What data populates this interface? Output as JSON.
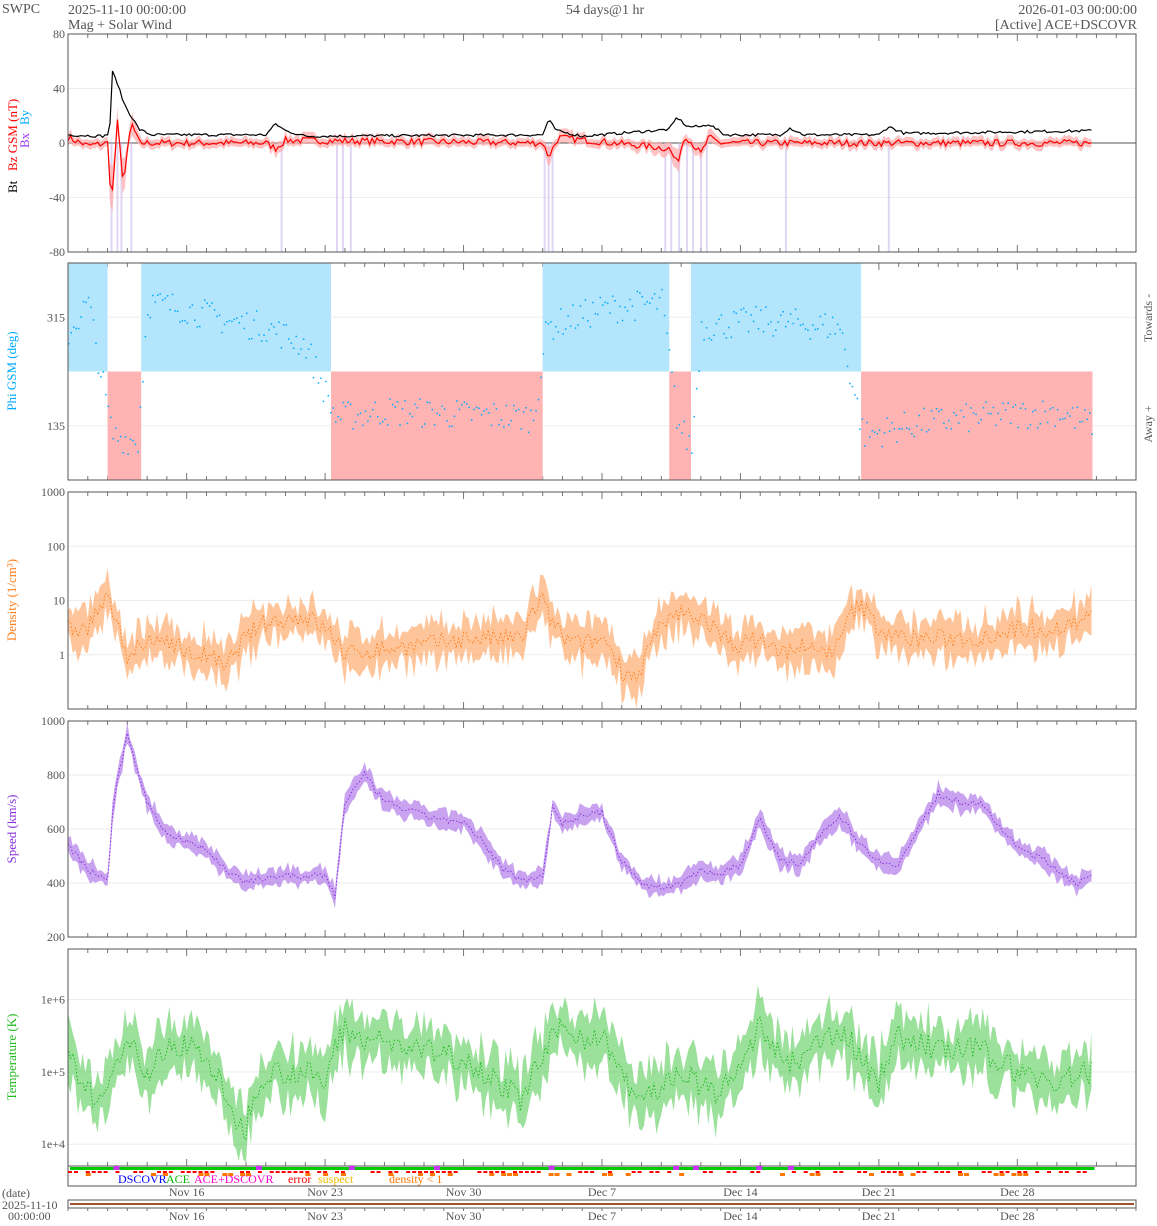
{
  "header": {
    "brand": "SWPC",
    "start": "2025-11-10 00:00:00",
    "title": "Mag + Solar Wind",
    "span": "54 days@1 hr",
    "end": "2026-01-03 00:00:00",
    "source": "[Active] ACE+DSCOVR"
  },
  "colors": {
    "bt": "#000000",
    "bz": "#ff0000",
    "bx": "#9933ff",
    "by": "#00aaff",
    "towards": "#b3e5fc",
    "away": "#ffb3b3",
    "density": "#ff7f1e",
    "speed": "#8833dd",
    "temp": "#22bb22"
  },
  "legend": {
    "dscovr": "DSCOVR",
    "ace": "ACE",
    "both": "ACE+DSCOVR",
    "error": "error",
    "suspect": "suspect",
    "density_lt1": "density < 1"
  },
  "bottom": {
    "date_label": "(date)",
    "start_date": "2025-11-10",
    "start_time": "00:00:00"
  },
  "side_labels": {
    "towards": "Towards -",
    "away": "Away +"
  },
  "chart_data": [
    {
      "type": "line",
      "name": "mag",
      "ylabel_parts": [
        "Bt",
        "Bz GSM (nT)",
        "Bx",
        "By"
      ],
      "ylim": [
        -80,
        80
      ],
      "yticks": [
        "80",
        "40",
        "0",
        "-40",
        "-80"
      ],
      "ytick_values": [
        80,
        40,
        0,
        -40,
        -80
      ],
      "bt": [
        [
          0,
          6
        ],
        [
          1.8,
          5
        ],
        [
          2.1,
          7
        ],
        [
          2.25,
          52
        ],
        [
          2.5,
          44
        ],
        [
          2.8,
          30
        ],
        [
          3.1,
          22
        ],
        [
          3.6,
          10
        ],
        [
          4.2,
          6
        ],
        [
          10,
          6
        ],
        [
          10.5,
          14
        ],
        [
          11,
          9
        ],
        [
          12,
          5
        ],
        [
          24,
          6
        ],
        [
          24.3,
          17
        ],
        [
          24.7,
          9
        ],
        [
          26,
          5
        ],
        [
          30.4,
          10
        ],
        [
          30.8,
          19
        ],
        [
          31.3,
          12
        ],
        [
          32,
          12
        ],
        [
          32.4,
          14
        ],
        [
          33.2,
          6
        ],
        [
          36,
          6
        ],
        [
          36.5,
          11
        ],
        [
          37.2,
          6
        ],
        [
          41,
          6
        ],
        [
          41.5,
          12
        ],
        [
          42.3,
          7
        ],
        [
          51.8,
          9
        ]
      ],
      "bz": [
        [
          0,
          4
        ],
        [
          1,
          -2
        ],
        [
          2,
          0
        ],
        [
          2.2,
          -45
        ],
        [
          2.5,
          15
        ],
        [
          2.8,
          -30
        ],
        [
          3.2,
          15
        ],
        [
          3.6,
          0
        ],
        [
          10,
          0
        ],
        [
          10.5,
          -4
        ],
        [
          11,
          2
        ],
        [
          24,
          0
        ],
        [
          24.3,
          -10
        ],
        [
          24.8,
          4
        ],
        [
          30.4,
          -4
        ],
        [
          30.8,
          -15
        ],
        [
          31.2,
          6
        ],
        [
          32,
          -8
        ],
        [
          32.4,
          4
        ],
        [
          33,
          0
        ],
        [
          51.8,
          0
        ]
      ]
    },
    {
      "type": "scatter",
      "name": "phi",
      "ylabel": "Phi GSM (deg)",
      "ylim": [
        45,
        405
      ],
      "yticks": [
        "315",
        "135"
      ],
      "ytick_values": [
        315,
        135
      ],
      "boundary": 225,
      "sectors": [
        [
          0,
          2,
          "towards"
        ],
        [
          2,
          3.7,
          "away"
        ],
        [
          3.7,
          13.3,
          "towards"
        ],
        [
          13.3,
          24,
          "away"
        ],
        [
          24,
          30.4,
          "towards"
        ],
        [
          30.4,
          31.5,
          "away"
        ],
        [
          31.5,
          40.1,
          "towards"
        ],
        [
          40.1,
          51.8,
          "away"
        ]
      ],
      "means": [
        [
          0,
          290
        ],
        [
          1,
          340
        ],
        [
          2.2,
          120
        ],
        [
          3.5,
          110
        ],
        [
          4,
          340
        ],
        [
          6,
          330
        ],
        [
          8,
          310
        ],
        [
          10,
          300
        ],
        [
          12,
          270
        ],
        [
          13.5,
          150
        ],
        [
          16,
          160
        ],
        [
          20,
          155
        ],
        [
          23.5,
          150
        ],
        [
          24.2,
          300
        ],
        [
          27,
          330
        ],
        [
          30,
          340
        ],
        [
          30.8,
          140
        ],
        [
          31.5,
          100
        ],
        [
          32,
          300
        ],
        [
          35,
          310
        ],
        [
          39,
          300
        ],
        [
          40.2,
          120
        ],
        [
          43,
          140
        ],
        [
          46,
          150
        ],
        [
          50,
          160
        ],
        [
          51.5,
          140
        ]
      ]
    },
    {
      "type": "area",
      "name": "density",
      "ylabel": "Density (1/cm³)",
      "scale": "log",
      "ylim": [
        0.1,
        1000
      ],
      "yticks": [
        "1000",
        "100",
        "10",
        "1"
      ],
      "ytick_values": [
        1000,
        100,
        10,
        1
      ],
      "values": [
        [
          0,
          3
        ],
        [
          1,
          3
        ],
        [
          2,
          10
        ],
        [
          2.5,
          3
        ],
        [
          3,
          1
        ],
        [
          4,
          1.5
        ],
        [
          5,
          2
        ],
        [
          6,
          1
        ],
        [
          7,
          1
        ],
        [
          8,
          0.5
        ],
        [
          9,
          2
        ],
        [
          10,
          4
        ],
        [
          12,
          5
        ],
        [
          13.5,
          2
        ],
        [
          14,
          1
        ],
        [
          16,
          1.3
        ],
        [
          18,
          1.5
        ],
        [
          20,
          2
        ],
        [
          22,
          2
        ],
        [
          23,
          2
        ],
        [
          24,
          10
        ],
        [
          24.3,
          5
        ],
        [
          25,
          2
        ],
        [
          26,
          1.5
        ],
        [
          27,
          2
        ],
        [
          28,
          0.5
        ],
        [
          29,
          0.4
        ],
        [
          30,
          3
        ],
        [
          31,
          6
        ],
        [
          32,
          5
        ],
        [
          33,
          2
        ],
        [
          34,
          1.5
        ],
        [
          35,
          2
        ],
        [
          36,
          1
        ],
        [
          37,
          1.5
        ],
        [
          38,
          1
        ],
        [
          39,
          1.5
        ],
        [
          40,
          8
        ],
        [
          41,
          3
        ],
        [
          42,
          2
        ],
        [
          44,
          2
        ],
        [
          46,
          2
        ],
        [
          48,
          3
        ],
        [
          50,
          3
        ],
        [
          51.8,
          5
        ]
      ]
    },
    {
      "type": "area",
      "name": "speed",
      "ylabel": "Speed (km/s)",
      "ylim": [
        200,
        1000
      ],
      "yticks": [
        "1000",
        "800",
        "600",
        "400",
        "200"
      ],
      "ytick_values": [
        1000,
        800,
        600,
        400,
        200
      ],
      "values": [
        [
          0,
          540
        ],
        [
          1,
          450
        ],
        [
          2,
          410
        ],
        [
          2.3,
          700
        ],
        [
          3,
          950
        ],
        [
          4,
          700
        ],
        [
          5,
          580
        ],
        [
          6,
          560
        ],
        [
          7,
          520
        ],
        [
          8,
          450
        ],
        [
          9,
          400
        ],
        [
          10,
          420
        ],
        [
          11,
          430
        ],
        [
          12,
          420
        ],
        [
          13,
          430
        ],
        [
          13.5,
          350
        ],
        [
          14,
          700
        ],
        [
          15,
          800
        ],
        [
          16,
          700
        ],
        [
          18,
          650
        ],
        [
          20,
          620
        ],
        [
          21,
          550
        ],
        [
          22,
          450
        ],
        [
          23,
          410
        ],
        [
          24,
          430
        ],
        [
          24.5,
          680
        ],
        [
          25,
          620
        ],
        [
          26,
          650
        ],
        [
          27,
          660
        ],
        [
          28,
          480
        ],
        [
          29,
          400
        ],
        [
          30,
          380
        ],
        [
          31,
          400
        ],
        [
          32,
          450
        ],
        [
          33,
          430
        ],
        [
          34,
          470
        ],
        [
          35,
          640
        ],
        [
          36,
          480
        ],
        [
          37,
          470
        ],
        [
          38,
          580
        ],
        [
          39,
          650
        ],
        [
          40,
          550
        ],
        [
          41,
          480
        ],
        [
          42,
          470
        ],
        [
          43,
          600
        ],
        [
          44,
          730
        ],
        [
          45,
          700
        ],
        [
          46,
          700
        ],
        [
          47,
          620
        ],
        [
          48,
          530
        ],
        [
          49,
          500
        ],
        [
          50,
          450
        ],
        [
          51,
          400
        ],
        [
          51.8,
          420
        ]
      ]
    },
    {
      "type": "area",
      "name": "temperature",
      "ylabel": "Temperature (K)",
      "scale": "log",
      "ylim": [
        5000,
        5000000
      ],
      "yticks": [
        "1e+6",
        "1e+5",
        "1e+4"
      ],
      "ytick_values": [
        1000000,
        100000,
        10000
      ],
      "values": [
        [
          0,
          150000
        ],
        [
          1,
          50000
        ],
        [
          2,
          40000
        ],
        [
          3,
          300000
        ],
        [
          4,
          80000
        ],
        [
          5,
          200000
        ],
        [
          6,
          250000
        ],
        [
          7,
          150000
        ],
        [
          8,
          30000
        ],
        [
          9,
          15000
        ],
        [
          10,
          100000
        ],
        [
          11,
          100000
        ],
        [
          12,
          100000
        ],
        [
          13,
          60000
        ],
        [
          14,
          400000
        ],
        [
          15,
          300000
        ],
        [
          16,
          250000
        ],
        [
          18,
          200000
        ],
        [
          20,
          150000
        ],
        [
          22,
          60000
        ],
        [
          23,
          40000
        ],
        [
          24,
          150000
        ],
        [
          25,
          400000
        ],
        [
          26,
          300000
        ],
        [
          27,
          300000
        ],
        [
          28,
          80000
        ],
        [
          29,
          40000
        ],
        [
          30,
          60000
        ],
        [
          31,
          100000
        ],
        [
          32,
          60000
        ],
        [
          33,
          50000
        ],
        [
          34,
          100000
        ],
        [
          35,
          400000
        ],
        [
          36,
          150000
        ],
        [
          37,
          120000
        ],
        [
          38,
          250000
        ],
        [
          39,
          400000
        ],
        [
          40,
          150000
        ],
        [
          41,
          70000
        ],
        [
          42,
          300000
        ],
        [
          43,
          250000
        ],
        [
          44,
          200000
        ],
        [
          46,
          200000
        ],
        [
          48,
          100000
        ],
        [
          50,
          70000
        ],
        [
          51.8,
          100000
        ]
      ]
    }
  ],
  "xaxis": {
    "labels": [
      "Nov 16",
      "Nov 23",
      "Nov 30",
      "Dec 7",
      "Dec 14",
      "Dec 21",
      "Dec 28"
    ],
    "days": [
      6,
      13,
      20,
      27,
      34,
      41,
      48
    ],
    "span_days": 54
  }
}
